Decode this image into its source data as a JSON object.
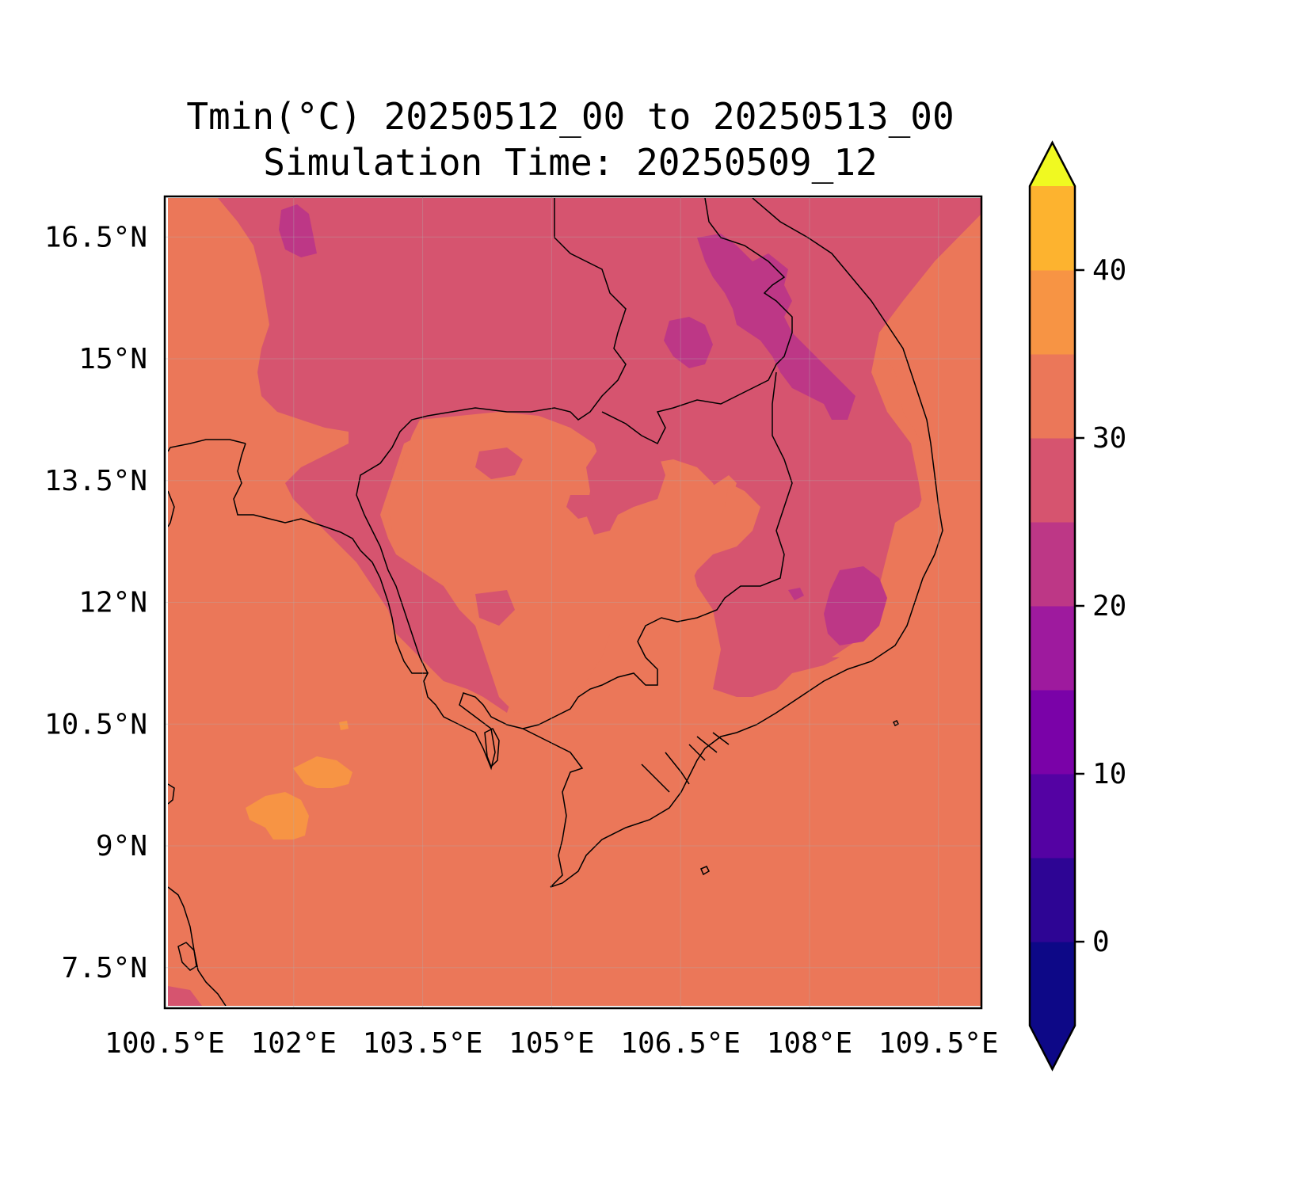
{
  "title": {
    "line1": "Tmin(°C) 20250512_00 to 20250513_00",
    "line2": "Simulation Time: 20250509_12"
  },
  "chart_data": {
    "type": "heatmap",
    "variable": "Tmin",
    "units": "°C",
    "grid": true,
    "x_ticks": [
      "100.5°E",
      "102°E",
      "103.5°E",
      "105°E",
      "106.5°E",
      "108°E",
      "109.5°E"
    ],
    "y_ticks": [
      "16.5°N",
      "15°N",
      "13.5°N",
      "12°N",
      "10.5°N",
      "9°N",
      "7.5°N"
    ],
    "x_tick_values": [
      100.5,
      102,
      103.5,
      105,
      106.5,
      108,
      109.5
    ],
    "y_tick_values": [
      16.5,
      15,
      13.5,
      12,
      10.5,
      9,
      7.5
    ],
    "xlim": [
      100.5,
      110
    ],
    "ylim": [
      7,
      17
    ],
    "colorbar": {
      "levels": [
        -5,
        0,
        5,
        10,
        15,
        20,
        25,
        30,
        35,
        40,
        45
      ],
      "colors": [
        "#0d0887",
        "#2d0594",
        "#5402a3",
        "#7a02a8",
        "#9e1a9e",
        "#bd3786",
        "#d6546f",
        "#eb7759",
        "#f79444",
        "#fdb32f",
        "#f5e326"
      ],
      "extend_low_color": "#0d0887",
      "extend_high_color": "#f0f921",
      "tick_labels": [
        "0",
        "10",
        "20",
        "30",
        "40"
      ],
      "tick_values": [
        0,
        10,
        20,
        30,
        40
      ],
      "extend": "both"
    },
    "background_level_range": [
      25,
      30
    ],
    "dominant_colors": {
      "warm_background": "#eb7759",
      "highlands": "#d6546f",
      "cool_patches": "#bd3786",
      "warm_patches": "#f79444"
    }
  }
}
